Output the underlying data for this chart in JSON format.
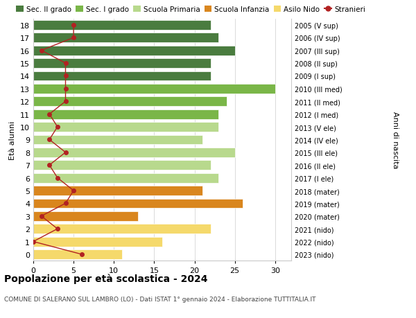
{
  "ages": [
    18,
    17,
    16,
    15,
    14,
    13,
    12,
    11,
    10,
    9,
    8,
    7,
    6,
    5,
    4,
    3,
    2,
    1,
    0
  ],
  "labels_right": [
    "2005 (V sup)",
    "2006 (IV sup)",
    "2007 (III sup)",
    "2008 (II sup)",
    "2009 (I sup)",
    "2010 (III med)",
    "2011 (II med)",
    "2012 (I med)",
    "2013 (V ele)",
    "2014 (IV ele)",
    "2015 (III ele)",
    "2016 (II ele)",
    "2017 (I ele)",
    "2018 (mater)",
    "2019 (mater)",
    "2020 (mater)",
    "2021 (nido)",
    "2022 (nido)",
    "2023 (nido)"
  ],
  "bar_values": [
    22,
    23,
    25,
    22,
    22,
    30,
    24,
    23,
    23,
    21,
    25,
    22,
    23,
    21,
    26,
    13,
    22,
    16,
    11
  ],
  "bar_colors": [
    "#4a7c3f",
    "#4a7c3f",
    "#4a7c3f",
    "#4a7c3f",
    "#4a7c3f",
    "#7ab648",
    "#7ab648",
    "#7ab648",
    "#b8d98d",
    "#b8d98d",
    "#b8d98d",
    "#b8d98d",
    "#b8d98d",
    "#d9861e",
    "#d9861e",
    "#d9861e",
    "#f5d96b",
    "#f5d96b",
    "#f5d96b"
  ],
  "stranieri": [
    5,
    5,
    1,
    4,
    4,
    4,
    4,
    2,
    3,
    2,
    4,
    2,
    3,
    5,
    4,
    1,
    3,
    0,
    6
  ],
  "title_main": "Popolazione per età scolastica - 2024",
  "title_sub": "COMUNE DI SALERANO SUL LAMBRO (LO) - Dati ISTAT 1° gennaio 2024 - Elaborazione TUTTITALIA.IT",
  "ylabel_left": "Età alunni",
  "ylabel_right": "Anni di nascita",
  "xlim": [
    0,
    32
  ],
  "xticks": [
    0,
    5,
    10,
    15,
    20,
    25,
    30
  ],
  "legend_labels": [
    "Sec. II grado",
    "Sec. I grado",
    "Scuola Primaria",
    "Scuola Infanzia",
    "Asilo Nido",
    "Stranieri"
  ],
  "legend_colors": [
    "#4a7c3f",
    "#7ab648",
    "#b8d98d",
    "#d9861e",
    "#f5d96b",
    "#b22222"
  ],
  "stranieri_color": "#b22222",
  "bg_color": "#ffffff",
  "grid_color": "#cccccc"
}
